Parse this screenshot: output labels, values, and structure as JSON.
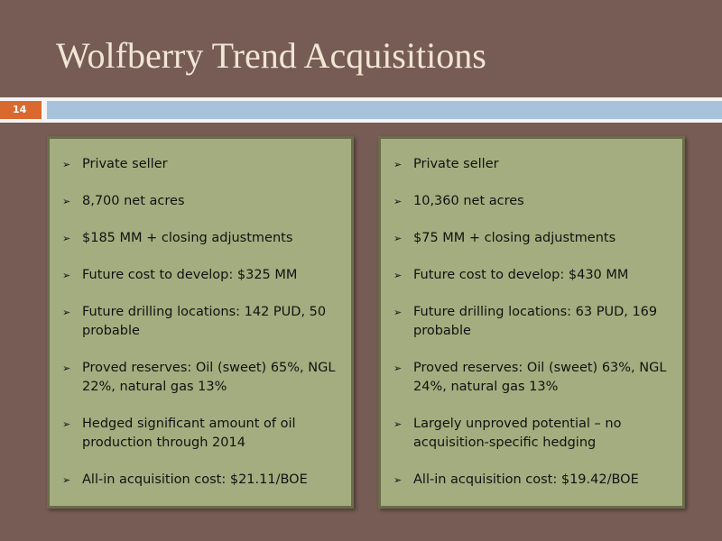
{
  "header": {
    "title": "Wolfberry Trend Acquisitions",
    "slide_number": "14"
  },
  "panels": [
    {
      "items": [
        "Private seller",
        "8,700 net acres",
        "$185 MM + closing adjustments",
        "Future cost to develop:  $325 MM",
        "Future drilling locations: 142 PUD, 50 probable",
        "Proved reserves: Oil (sweet) 65%, NGL 22%, natural gas 13%",
        "Hedged significant amount of oil production through 2014",
        "All-in acquisition cost:  $21.11/BOE"
      ]
    },
    {
      "items": [
        "Private seller",
        "10,360 net acres",
        "$75 MM + closing adjustments",
        "Future cost to develop:  $430 MM",
        "Future drilling locations: 63 PUD,  169 probable",
        "Proved reserves: Oil (sweet) 63%, NGL 24%, natural gas 13%",
        "Largely unproved potential – no acquisition-specific hedging",
        "All-in acquisition cost: $19.42/BOE"
      ]
    }
  ]
}
